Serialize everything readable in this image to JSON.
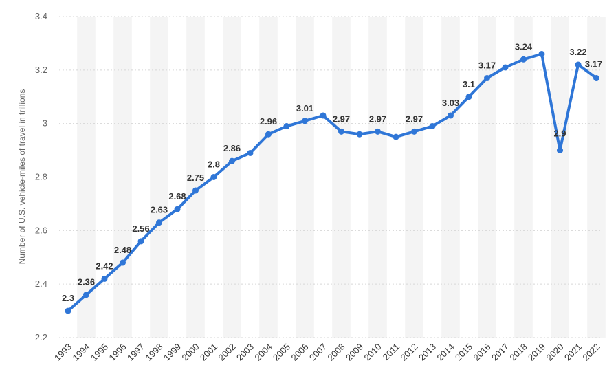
{
  "chart_data": {
    "type": "line",
    "ylabel": "Number of U.S. vehicle-miles of travel in trillions",
    "ylim": [
      2.2,
      3.4
    ],
    "yticks": [
      2.2,
      2.4,
      2.6,
      2.8,
      3,
      3.2,
      3.4
    ],
    "line_color": "#2f76d7",
    "band_color": "#f4f4f4",
    "grid": true,
    "categories": [
      "1993",
      "1994",
      "1995",
      "1996",
      "1997",
      "1998",
      "1999",
      "2000",
      "2001",
      "2002",
      "2003",
      "2004",
      "2005",
      "2006",
      "2007",
      "2008",
      "2009",
      "2010",
      "2011",
      "2012",
      "2013",
      "2014",
      "2015",
      "2016",
      "2017",
      "2018",
      "2019",
      "2020",
      "2021",
      "2022"
    ],
    "series": [
      {
        "values": [
          2.3,
          2.36,
          2.42,
          2.48,
          2.56,
          2.63,
          2.68,
          2.75,
          2.8,
          2.86,
          2.89,
          2.96,
          2.99,
          3.01,
          3.03,
          2.97,
          2.96,
          2.97,
          2.95,
          2.97,
          2.99,
          3.03,
          3.1,
          3.17,
          3.21,
          3.24,
          3.26,
          2.9,
          3.22,
          3.17
        ],
        "data_labels": [
          "2.3",
          "2.36",
          "2.42",
          "2.48",
          "2.56",
          "2.63",
          "2.68",
          "2.75",
          "2.8",
          "2.86",
          "",
          "2.96",
          "",
          "3.01",
          "",
          "2.97",
          "",
          "2.97",
          "",
          "2.97",
          "",
          "3.03",
          "3.1",
          "3.17",
          "",
          "3.24",
          "",
          "2.9",
          "3.22",
          "3.17"
        ]
      }
    ]
  }
}
